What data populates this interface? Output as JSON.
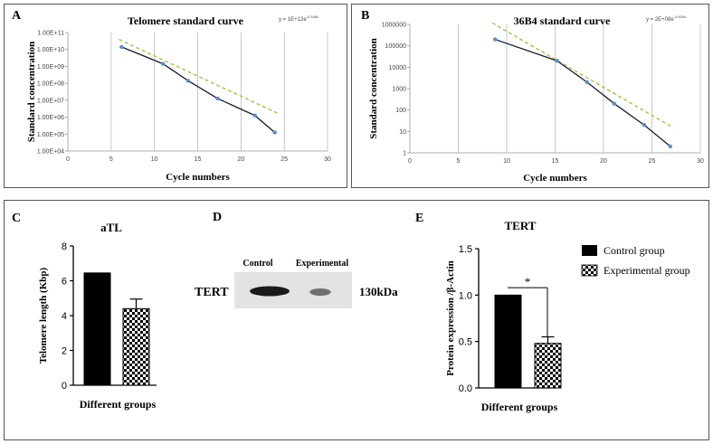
{
  "panels": {
    "A": {
      "letter": "A"
    },
    "B": {
      "letter": "B"
    },
    "C": {
      "letter": "C"
    },
    "D": {
      "letter": "D"
    },
    "E": {
      "letter": "E"
    }
  },
  "chart_data": [
    {
      "id": "A",
      "type": "line",
      "title": "Telomere standard curve",
      "equation": "y = 1E+12e",
      "equation_exp": "-0.548x",
      "xlabel": "Cycle numbers",
      "ylabel": "Standard concentration",
      "xlim": [
        0,
        30
      ],
      "x_ticks": [
        "0",
        "5",
        "10",
        "15",
        "20",
        "25",
        "30"
      ],
      "y_log_range": [
        4,
        11
      ],
      "y_ticks": [
        "1.00E+04",
        "1.00E+05",
        "1.00E+06",
        "1.00E+07",
        "1.00E+08",
        "1.00E+09",
        "1.00E+10",
        "1.00E+11"
      ],
      "series": [
        {
          "name": "data",
          "x": [
            6.2,
            11.0,
            13.9,
            17.3,
            21.6,
            23.9
          ],
          "log10y": [
            10.15,
            9.15,
            8.15,
            7.1,
            6.1,
            5.1
          ]
        }
      ],
      "trendline": {
        "type": "exponential",
        "a_log10": 12.0,
        "b": -0.548,
        "x_range": [
          6.2,
          23.9
        ]
      },
      "grid": "vertical"
    },
    {
      "id": "B",
      "type": "line",
      "title": "36B4 standard curve",
      "equation": "y = 2E+08e",
      "equation_exp": "-0.603x",
      "xlabel": "Cycle numbers",
      "ylabel": "Standard concentration",
      "xlim": [
        0,
        30
      ],
      "x_ticks": [
        "0",
        "5",
        "10",
        "15",
        "20",
        "25",
        "30"
      ],
      "y_log_range": [
        0,
        6
      ],
      "y_ticks": [
        "1",
        "10",
        "100",
        "1000",
        "10000",
        "100000",
        "1000000"
      ],
      "series": [
        {
          "name": "data",
          "x": [
            8.8,
            15.2,
            18.3,
            21.1,
            24.2,
            26.9
          ],
          "log10y": [
            5.3,
            4.3,
            3.3,
            2.3,
            1.3,
            0.3
          ]
        }
      ],
      "trendline": {
        "type": "exponential",
        "a_log10": 8.3,
        "b": -0.603,
        "x_range": [
          8.8,
          26.9
        ]
      },
      "grid": "vertical"
    },
    {
      "id": "C",
      "type": "bar",
      "title": "aTL",
      "xlabel": "Different groups",
      "ylabel": "Telomere length (Kbp)",
      "ylim": [
        0,
        8
      ],
      "y_ticks": [
        "0",
        "2",
        "4",
        "6",
        "8"
      ],
      "categories": [
        "Control group",
        "Experimental group"
      ],
      "values": [
        6.45,
        4.4
      ],
      "errors": [
        0,
        0.55
      ]
    },
    {
      "id": "D",
      "type": "blot",
      "lanes": [
        "Control",
        "Experimental"
      ],
      "row_label": "TERT",
      "size_label": "130kDa",
      "intensity": [
        1.0,
        0.45
      ]
    },
    {
      "id": "E",
      "type": "bar",
      "title": "TERT",
      "xlabel": "Different groups",
      "ylabel": "Protein expression /β-Actin",
      "ylim": [
        0,
        1.5
      ],
      "y_ticks": [
        "0.0",
        "0.5",
        "1.0",
        "1.5"
      ],
      "categories": [
        "Control group",
        "Experimental group"
      ],
      "values": [
        1.0,
        0.48
      ],
      "errors": [
        0,
        0.07
      ],
      "significance": "*",
      "legend": [
        "Control group",
        "Experimental group"
      ]
    }
  ]
}
